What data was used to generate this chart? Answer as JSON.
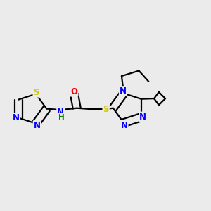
{
  "background_color": "#ebebeb",
  "bond_color": "#000000",
  "atom_colors": {
    "N": "#0000FF",
    "S": "#CCCC00",
    "O": "#FF0000",
    "H": "#008000",
    "C": "#000000"
  },
  "figsize": [
    3.0,
    3.0
  ],
  "dpi": 100
}
